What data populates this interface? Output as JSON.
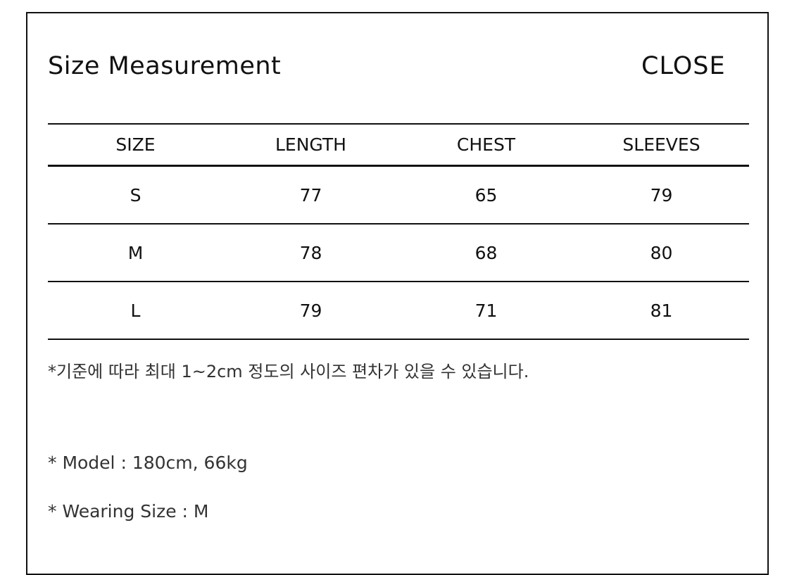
{
  "title": "Size Measurement",
  "close_label": "CLOSE",
  "table": {
    "headers": [
      "SIZE",
      "LENGTH",
      "CHEST",
      "SLEEVES"
    ],
    "rows": [
      [
        "S",
        "77",
        "65",
        "79"
      ],
      [
        "M",
        "78",
        "68",
        "80"
      ],
      [
        "L",
        "79",
        "71",
        "81"
      ]
    ]
  },
  "note": "*기준에 따라 최대 1~2cm 정도의 사이즈 편차가 있을 수 있습니다.",
  "model": "* Model : 180cm, 66kg",
  "wearing_size": "* Wearing Size : M"
}
